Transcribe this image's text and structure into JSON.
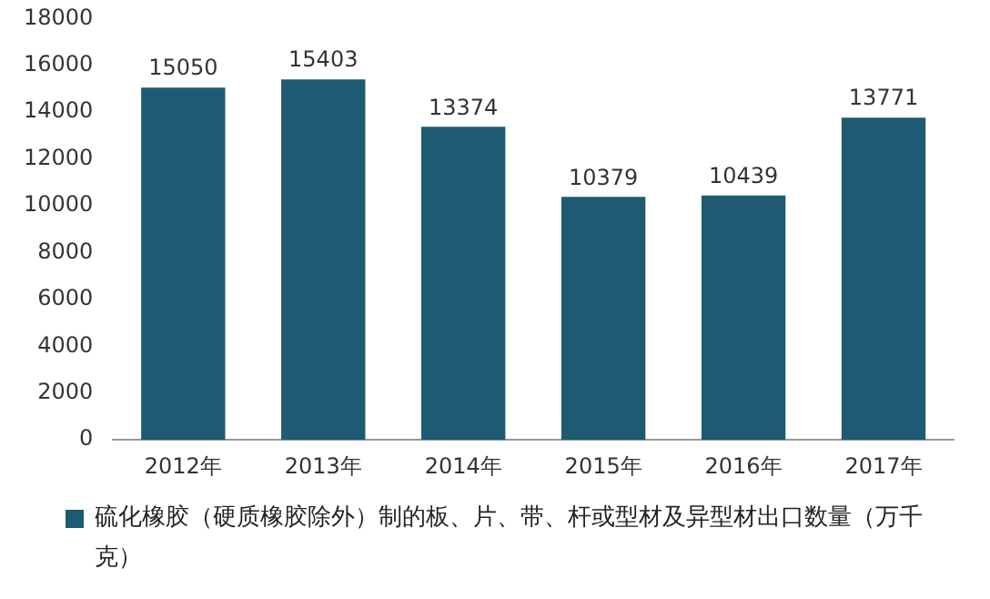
{
  "chart_data": {
    "type": "bar",
    "categories": [
      "2012年",
      "2013年",
      "2014年",
      "2015年",
      "2016年",
      "2017年"
    ],
    "series": [
      {
        "name": "硫化橡胶（硬质橡胶除外）制的板、片、带、杆或型材及异型材出口数量（万千克）",
        "color": "#1f5a73",
        "values": [
          15050,
          15403,
          13374,
          10379,
          10439,
          13771
        ]
      }
    ],
    "ylim": [
      0,
      18000
    ],
    "yticks": [
      0,
      2000,
      4000,
      6000,
      8000,
      10000,
      12000,
      14000,
      16000,
      18000
    ],
    "grid": false,
    "legend": "bottom",
    "data_labels": true
  }
}
